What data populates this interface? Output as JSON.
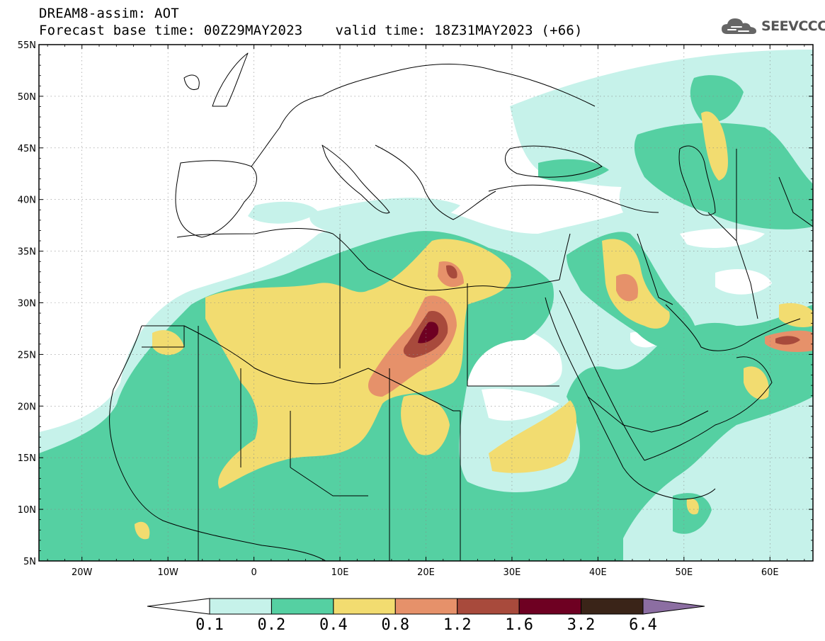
{
  "header": {
    "line1": "DREAM8-assim: AOT",
    "base_time": "Forecast base time: 00Z29MAY2023",
    "valid_time": "valid time: 18Z31MAY2023 (+66)"
  },
  "logo": {
    "text": "SEEVCCC",
    "icon": "cloud-icon"
  },
  "map": {
    "lon_range": [
      -25,
      65
    ],
    "lat_range": [
      5,
      55
    ],
    "lat_ticks": [
      {
        "value": 55,
        "label": "55N"
      },
      {
        "value": 50,
        "label": "50N"
      },
      {
        "value": 45,
        "label": "45N"
      },
      {
        "value": 40,
        "label": "40N"
      },
      {
        "value": 35,
        "label": "35N"
      },
      {
        "value": 30,
        "label": "30N"
      },
      {
        "value": 25,
        "label": "25N"
      },
      {
        "value": 20,
        "label": "20N"
      },
      {
        "value": 15,
        "label": "15N"
      },
      {
        "value": 10,
        "label": "10N"
      },
      {
        "value": 5,
        "label": "5N"
      }
    ],
    "lon_ticks": [
      {
        "value": -20,
        "label": "20W"
      },
      {
        "value": -10,
        "label": "10W"
      },
      {
        "value": 0,
        "label": "0"
      },
      {
        "value": 10,
        "label": "10E"
      },
      {
        "value": 20,
        "label": "20E"
      },
      {
        "value": 30,
        "label": "30E"
      },
      {
        "value": 40,
        "label": "40E"
      },
      {
        "value": 50,
        "label": "50E"
      },
      {
        "value": 60,
        "label": "60E"
      }
    ]
  },
  "colorbar": {
    "levels": [
      "0.1",
      "0.2",
      "0.4",
      "0.8",
      "1.2",
      "1.6",
      "3.2",
      "6.4"
    ],
    "colors": [
      "#ffffff",
      "#c6f2ea",
      "#55d0a2",
      "#f2dc70",
      "#e6916a",
      "#a84a3c",
      "#6e0022",
      "#3a2418",
      "#8c6ea2"
    ]
  }
}
